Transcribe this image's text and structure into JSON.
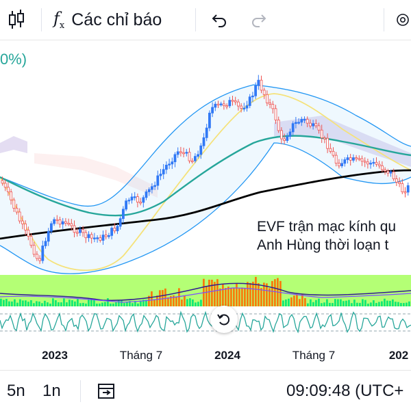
{
  "toolbar": {
    "indicators_label": "Các chỉ báo",
    "fx_symbol": "f",
    "fx_sub": "x"
  },
  "legend": {
    "percent_text": "0%)"
  },
  "annotations": [
    "EVF trận mạc kính qu",
    "Anh Hùng thời loạn t"
  ],
  "time_axis": {
    "labels": [
      "2023",
      "Tháng 7",
      "2024",
      "Tháng 7",
      "202"
    ]
  },
  "bottom_bar": {
    "interval_5d": "5n",
    "interval_1y": "1n",
    "clock": "09:09:48 (UTC+"
  },
  "colors": {
    "up": "#26a69a",
    "down": "#ef5350",
    "candle_up": "#3179f5",
    "bollinger": "#2196f3",
    "ma_teal": "#26a69a",
    "ma_black": "#000000",
    "ma_yellow": "#f5e27a",
    "cloud": "#b39ddb",
    "macd_green": "#00e676",
    "macd_orange": "#ff6d00",
    "rsi": "#26a69a"
  },
  "icons": [
    "candlestick-icon",
    "fx-icon",
    "undo-icon",
    "redo-icon",
    "settings-icon",
    "replay-icon",
    "reset-zoom-icon"
  ]
}
